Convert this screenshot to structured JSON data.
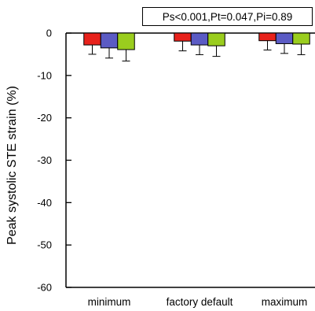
{
  "chart_data": {
    "type": "bar",
    "title": "",
    "xlabel": "",
    "ylabel": "Peak systolic STE strain (%)",
    "ylim": [
      -60,
      0
    ],
    "yticks": [
      0,
      -10,
      -20,
      -30,
      -40,
      -50,
      -60
    ],
    "categories": [
      "minimum",
      "factory default",
      "maximum"
    ],
    "colors": [
      "#e8221c",
      "#5b5bc4",
      "#9acd1e"
    ],
    "series": [
      {
        "values": [
          -2.8,
          -1.9,
          -1.8
        ],
        "errors": [
          2.2,
          2.3,
          2.2
        ]
      },
      {
        "values": [
          -3.5,
          -2.8,
          -2.5
        ],
        "errors": [
          2.4,
          2.3,
          2.3
        ]
      },
      {
        "values": [
          -3.9,
          -3.0,
          -2.6
        ],
        "errors": [
          2.7,
          2.5,
          2.5
        ]
      }
    ],
    "grid": false,
    "annotation": "Ps<0.001,Pt=0.047,Pi=0.89"
  }
}
